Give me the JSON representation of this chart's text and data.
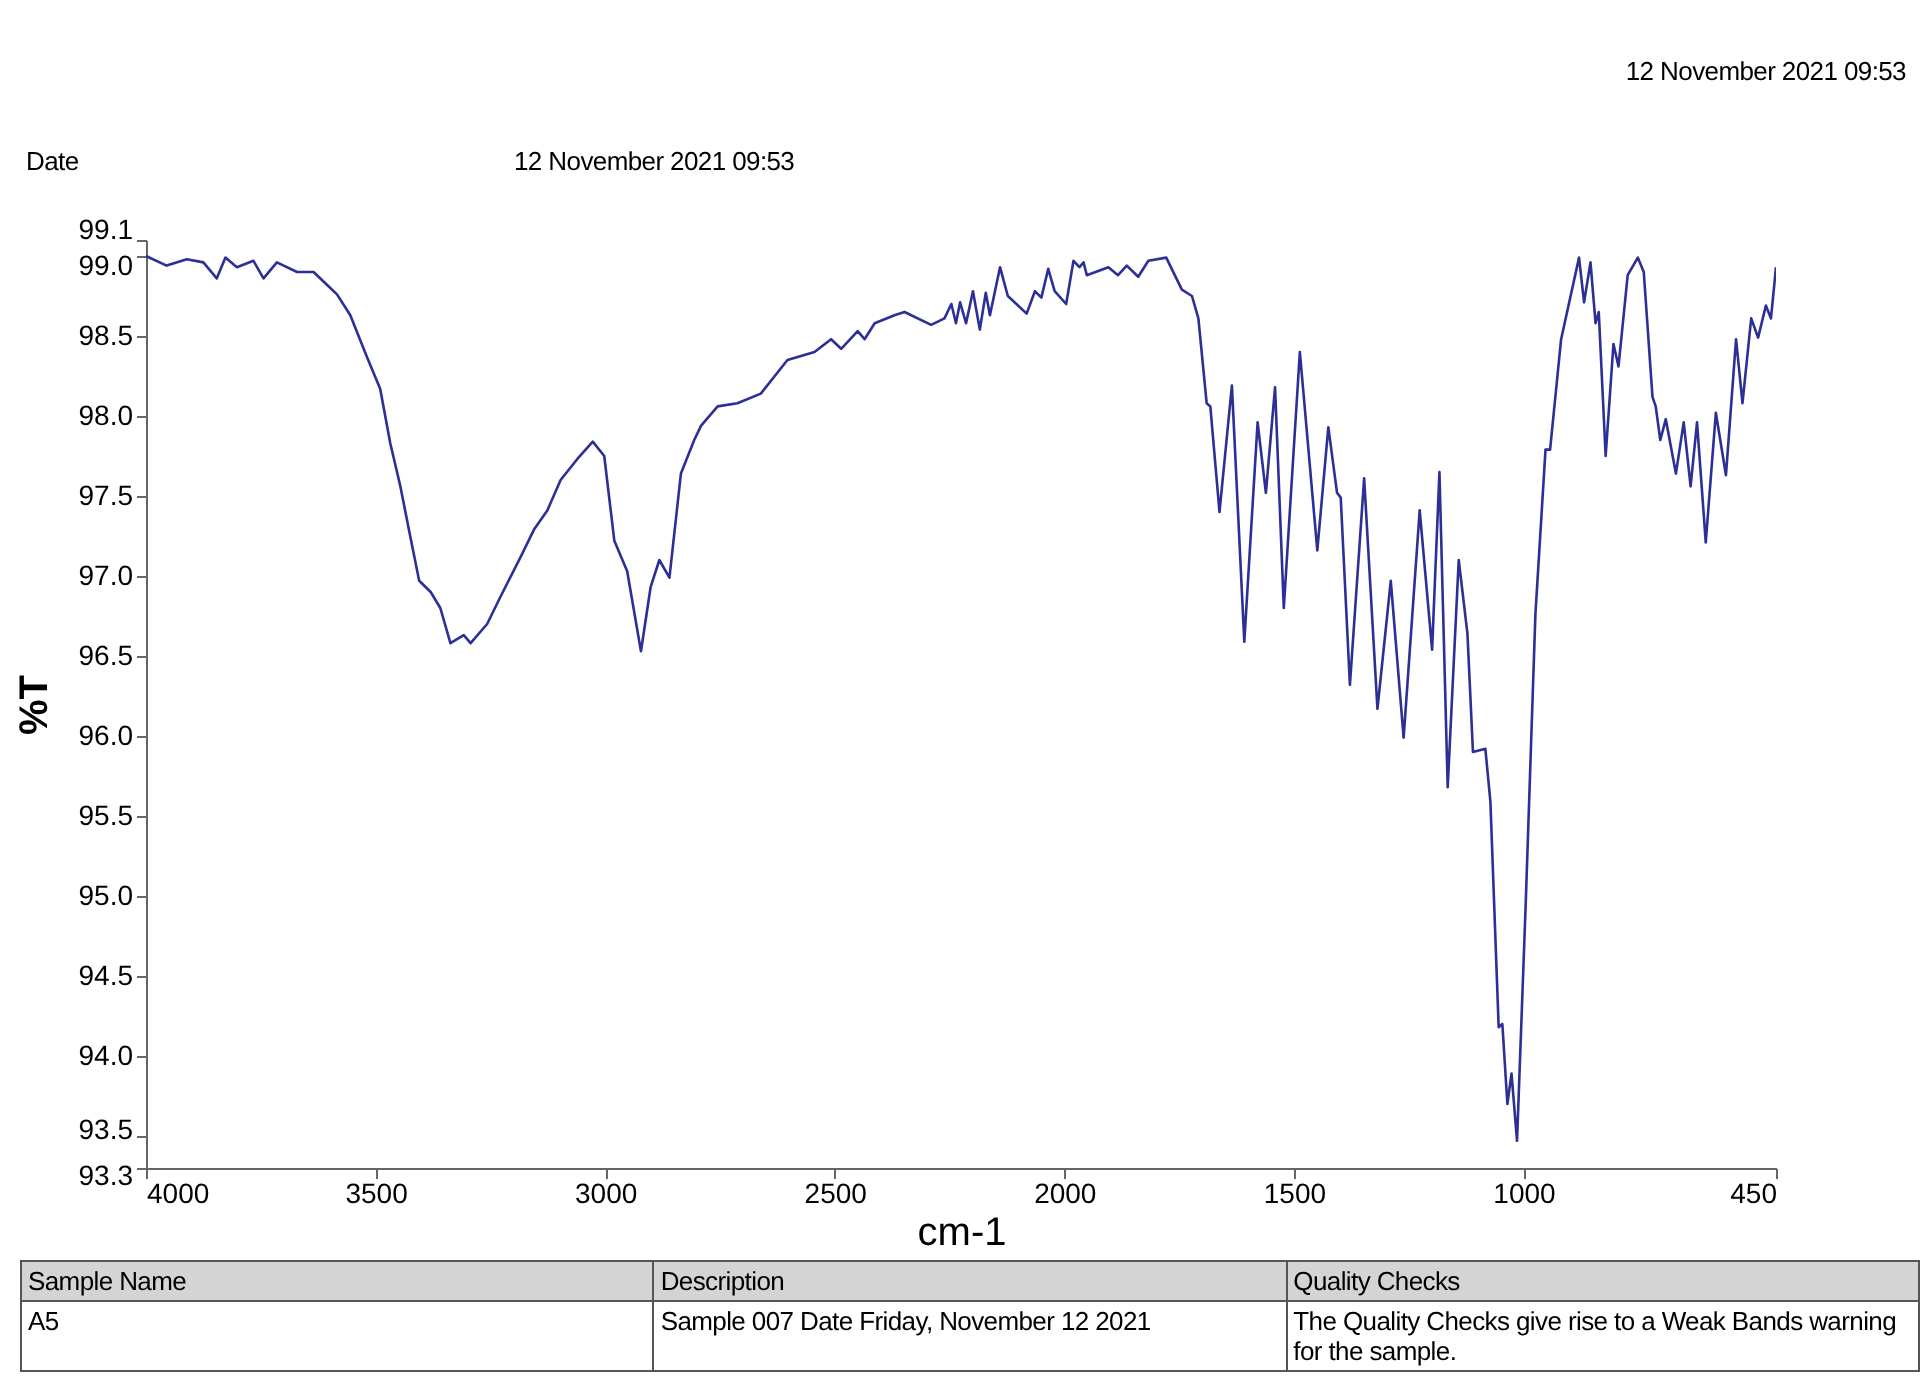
{
  "chart_data": {
    "type": "line",
    "xlabel": "cm-1",
    "ylabel": "%T",
    "annotations": [
      "12 November 2021 09:53",
      "Date",
      "12 November 2021 09:53",
      "Sample Name",
      "Description",
      "Quality Checks",
      "A5",
      "Sample 007 Date Friday, November 12 2021",
      "The Quality Checks give rise to a Weak Bands warning for the sample."
    ],
    "x": [
      4000,
      3955,
      3911,
      3875,
      3846,
      3827,
      3802,
      3766,
      3744,
      3715,
      3671,
      3635,
      3606,
      3584,
      3555,
      3519,
      3490,
      3468,
      3446,
      3424,
      3405,
      3380,
      3359,
      3337,
      3308,
      3293,
      3257,
      3228,
      3184,
      3155,
      3126,
      3097,
      3061,
      3027,
      3002,
      2980,
      2952,
      2922,
      2901,
      2882,
      2860,
      2835,
      2806,
      2791,
      2755,
      2712,
      2661,
      2603,
      2544,
      2508,
      2486,
      2450,
      2435,
      2413,
      2370,
      2348,
      2290,
      2261,
      2246,
      2236,
      2227,
      2214,
      2199,
      2184,
      2171,
      2162,
      2140,
      2123,
      2082,
      2064,
      2050,
      2035,
      2021,
      1996,
      1980,
      1967,
      1958,
      1951,
      1904,
      1883,
      1864,
      1839,
      1817,
      1778,
      1744,
      1722,
      1708,
      1690,
      1682,
      1662,
      1635,
      1608,
      1579,
      1561,
      1541,
      1522,
      1487,
      1449,
      1425,
      1406,
      1398,
      1378,
      1347,
      1318,
      1289,
      1261,
      1243,
      1226,
      1199,
      1183,
      1165,
      1141,
      1122,
      1110,
      1083,
      1072,
      1054,
      1046,
      1035,
      1026,
      1014,
      995,
      974,
      952,
      942,
      918,
      879,
      868,
      854,
      843,
      836,
      821,
      804,
      793,
      773,
      751,
      738,
      719,
      712,
      702,
      690,
      668,
      651,
      636,
      622,
      603,
      581,
      559,
      537,
      523,
      504,
      489,
      472,
      461,
      450
    ],
    "series": [
      {
        "color": "#2b2f96",
        "values": [
          99.0,
          98.94,
          98.98,
          98.96,
          98.86,
          98.99,
          98.93,
          98.97,
          98.86,
          98.96,
          98.9,
          98.9,
          98.82,
          98.76,
          98.63,
          98.37,
          98.17,
          97.83,
          97.56,
          97.24,
          96.97,
          96.9,
          96.8,
          96.58,
          96.63,
          96.58,
          96.7,
          96.87,
          97.12,
          97.29,
          97.41,
          97.6,
          97.73,
          97.84,
          97.75,
          97.22,
          97.03,
          96.53,
          96.93,
          97.1,
          96.99,
          97.64,
          97.85,
          97.94,
          98.06,
          98.08,
          98.14,
          98.35,
          98.4,
          98.48,
          98.42,
          98.53,
          98.48,
          98.58,
          98.63,
          98.65,
          98.57,
          98.61,
          98.7,
          98.58,
          98.71,
          98.58,
          98.78,
          98.54,
          98.77,
          98.63,
          98.93,
          98.75,
          98.64,
          98.78,
          98.74,
          98.92,
          98.78,
          98.7,
          98.97,
          98.93,
          98.96,
          98.88,
          98.93,
          98.88,
          98.94,
          98.87,
          98.97,
          98.99,
          98.79,
          98.75,
          98.61,
          98.08,
          98.06,
          97.4,
          98.19,
          96.59,
          97.96,
          97.52,
          98.18,
          96.8,
          98.4,
          97.16,
          97.93,
          97.52,
          97.49,
          96.32,
          97.61,
          96.17,
          96.97,
          95.99,
          96.72,
          97.41,
          96.54,
          97.65,
          95.68,
          97.1,
          96.64,
          95.9,
          95.92,
          95.59,
          94.18,
          94.2,
          93.7,
          93.89,
          93.47,
          94.96,
          96.76,
          97.79,
          97.79,
          98.48,
          98.99,
          98.71,
          98.96,
          98.58,
          98.65,
          97.75,
          98.45,
          98.31,
          98.88,
          98.99,
          98.9,
          98.12,
          98.06,
          97.85,
          97.98,
          97.64,
          97.96,
          97.56,
          97.96,
          97.21,
          98.02,
          97.63,
          98.48,
          98.08,
          98.61,
          98.49,
          98.69,
          98.61,
          98.93
        ]
      }
    ],
    "xlim": [
      4000,
      450
    ],
    "xticks": [
      4000,
      3500,
      3000,
      2500,
      2000,
      1500,
      1000,
      450
    ],
    "ylim": [
      93.3,
      99.1
    ],
    "yticks": [
      93.3,
      93.5,
      {
        "value": 94,
        "label": "94.0"
      },
      94.5,
      {
        "value": 95,
        "label": "95.0"
      },
      95.5,
      {
        "value": 96,
        "label": "96.0"
      },
      96.5,
      {
        "value": 97,
        "label": "97.0"
      },
      97.5,
      {
        "value": 98,
        "label": "98.0"
      },
      98.5,
      {
        "value": 99,
        "label": "99.0"
      },
      99.1
    ],
    "grid": false
  }
}
